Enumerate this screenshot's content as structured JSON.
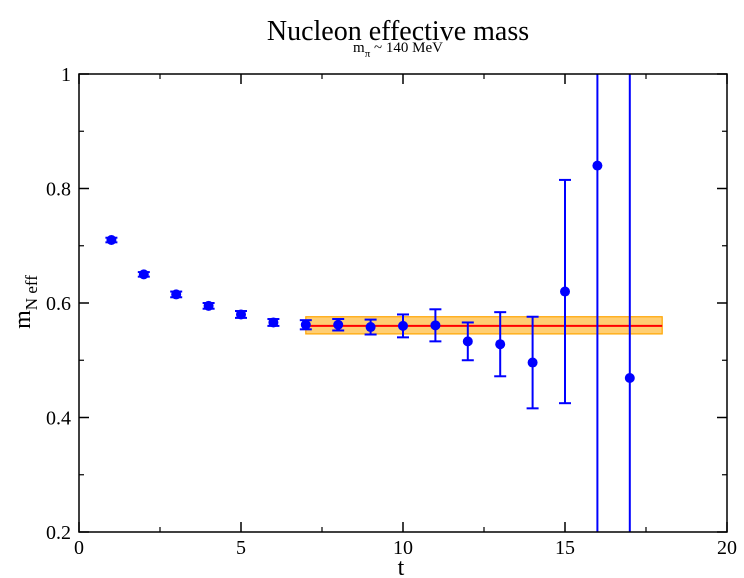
{
  "chart_data": {
    "type": "scatter",
    "title": "Nucleon effective mass",
    "subtitle_main": "m",
    "subtitle_sub": "π",
    "subtitle_rest": " ~ 140 MeV",
    "xlabel": "t",
    "ylabel_main": "m",
    "ylabel_sub": "N eff",
    "xlim": [
      0,
      20
    ],
    "ylim": [
      0.2,
      1.0
    ],
    "xticks": [
      0,
      5,
      10,
      15,
      20
    ],
    "xtick_labels": [
      "0",
      "5",
      "10",
      "15",
      "20"
    ],
    "yticks": [
      0.2,
      0.4,
      0.6,
      0.8,
      1.0
    ],
    "ytick_labels": [
      "0.2",
      "0.4",
      "0.6",
      "0.8",
      "1"
    ],
    "grid": false,
    "colors": {
      "points": "#0000ff",
      "fit_line": "#ff0000",
      "fit_band": "#ffa500"
    },
    "points": [
      {
        "x": 1,
        "y": 0.71,
        "err": 0.004
      },
      {
        "x": 2,
        "y": 0.65,
        "err": 0.004
      },
      {
        "x": 3,
        "y": 0.615,
        "err": 0.005
      },
      {
        "x": 4,
        "y": 0.595,
        "err": 0.005
      },
      {
        "x": 5,
        "y": 0.58,
        "err": 0.006
      },
      {
        "x": 6,
        "y": 0.566,
        "err": 0.006
      },
      {
        "x": 7,
        "y": 0.562,
        "err": 0.008
      },
      {
        "x": 8,
        "y": 0.562,
        "err": 0.01
      },
      {
        "x": 9,
        "y": 0.558,
        "err": 0.013
      },
      {
        "x": 10,
        "y": 0.56,
        "err": 0.02
      },
      {
        "x": 11,
        "y": 0.561,
        "err": 0.028
      },
      {
        "x": 12,
        "y": 0.533,
        "err": 0.033
      },
      {
        "x": 13,
        "y": 0.528,
        "err": 0.056
      },
      {
        "x": 14,
        "y": 0.496,
        "err": 0.08
      },
      {
        "x": 15,
        "y": 0.62,
        "err": 0.195
      },
      {
        "x": 16,
        "y": 0.84,
        "err": 0.9
      },
      {
        "x": 17,
        "y": 0.469,
        "err": 0.9
      }
    ],
    "fit": {
      "x_range": [
        7,
        18
      ],
      "value": 0.56,
      "band": [
        0.546,
        0.576
      ]
    }
  }
}
